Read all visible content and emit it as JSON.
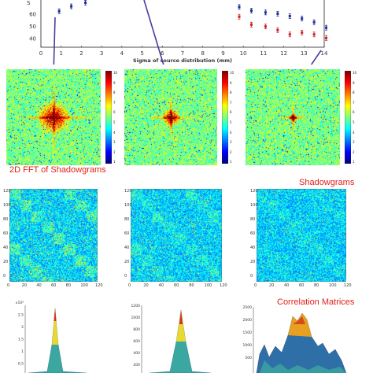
{
  "top_chart": {
    "type": "scatter",
    "xlabel": "Sigma of source distribution (mm)",
    "x_ticks": [
      "0",
      "1",
      "2",
      "3",
      "4",
      "5",
      "6",
      "7",
      "8",
      "9",
      "10",
      "11",
      "12",
      "13",
      "14"
    ],
    "y_ticks": [
      "60",
      "50",
      "40"
    ],
    "ylabel_partial": "S",
    "xlim": [
      0,
      14
    ],
    "ylim": [
      33,
      73
    ],
    "colors": {
      "blue": "#1a2a9a",
      "red": "#d02020",
      "arrow": "#4a3aa0"
    }
  },
  "chart_data": {
    "type": "scatter",
    "xlabel": "Sigma of source distribution (mm)",
    "xlim": [
      0,
      14
    ],
    "ylim": [
      33,
      73
    ],
    "series": [
      {
        "points": [
          [
            0.9,
            62.5
          ],
          [
            1.5,
            66.5
          ],
          [
            2.2,
            69.5
          ],
          [
            9.8,
            66
          ],
          [
            10.4,
            63
          ],
          [
            11.1,
            61.5
          ],
          [
            11.7,
            60.5
          ],
          [
            12.3,
            58.5
          ],
          [
            12.9,
            56.5
          ],
          [
            13.5,
            53.5
          ],
          [
            14.1,
            49
          ]
        ]
      },
      {
        "points": [
          [
            9.8,
            58
          ],
          [
            10.4,
            51.5
          ],
          [
            11.1,
            50
          ],
          [
            11.7,
            47
          ],
          [
            12.3,
            43.5
          ],
          [
            12.9,
            45
          ],
          [
            13.5,
            43.5
          ],
          [
            14.1,
            40.5
          ]
        ]
      }
    ]
  },
  "captions": {
    "fft": "2D FFT of Shadowgrams",
    "shadow": "Shadowgrams",
    "corr": "Correlation Matrices"
  },
  "fft_colorbar_ticks": [
    "10",
    "9",
    "8",
    "7",
    "6",
    "5",
    "4",
    "3",
    "2",
    "1"
  ],
  "shadow_ticks": [
    "120",
    "100",
    "80",
    "60",
    "40",
    "20",
    "0"
  ],
  "shadow_xticks": [
    "0",
    "20",
    "40",
    "60",
    "80",
    "100",
    "120"
  ],
  "corr_ticks": {
    "left": [
      "x10³",
      "2.5",
      "2",
      "1.5",
      "1",
      "0.5"
    ],
    "mid": [
      "1200",
      "1000",
      "800",
      "600",
      "400",
      "200"
    ],
    "right": [
      "2500",
      "2000",
      "1500",
      "1000",
      "500"
    ]
  }
}
